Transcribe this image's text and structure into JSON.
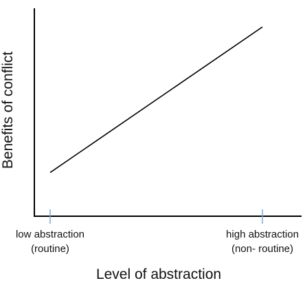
{
  "chart_data": {
    "type": "line",
    "xlabel": "Level of abstraction",
    "ylabel": "Benefits of conflict",
    "x_ticks": [
      {
        "value": 0,
        "label_lines": [
          "low abstraction",
          "(routine)"
        ]
      },
      {
        "value": 1,
        "label_lines": [
          "high abstraction",
          "(non- routine)"
        ]
      }
    ],
    "series": [
      {
        "points": [
          {
            "x": 0,
            "y": 0.21
          },
          {
            "x": 1,
            "y": 0.91
          }
        ]
      }
    ],
    "grid": false,
    "y_ticks_shown": false,
    "colors": {
      "axis": "#000000",
      "line": "#000000",
      "tick": "#7fa9d6",
      "text": "#111111"
    }
  }
}
